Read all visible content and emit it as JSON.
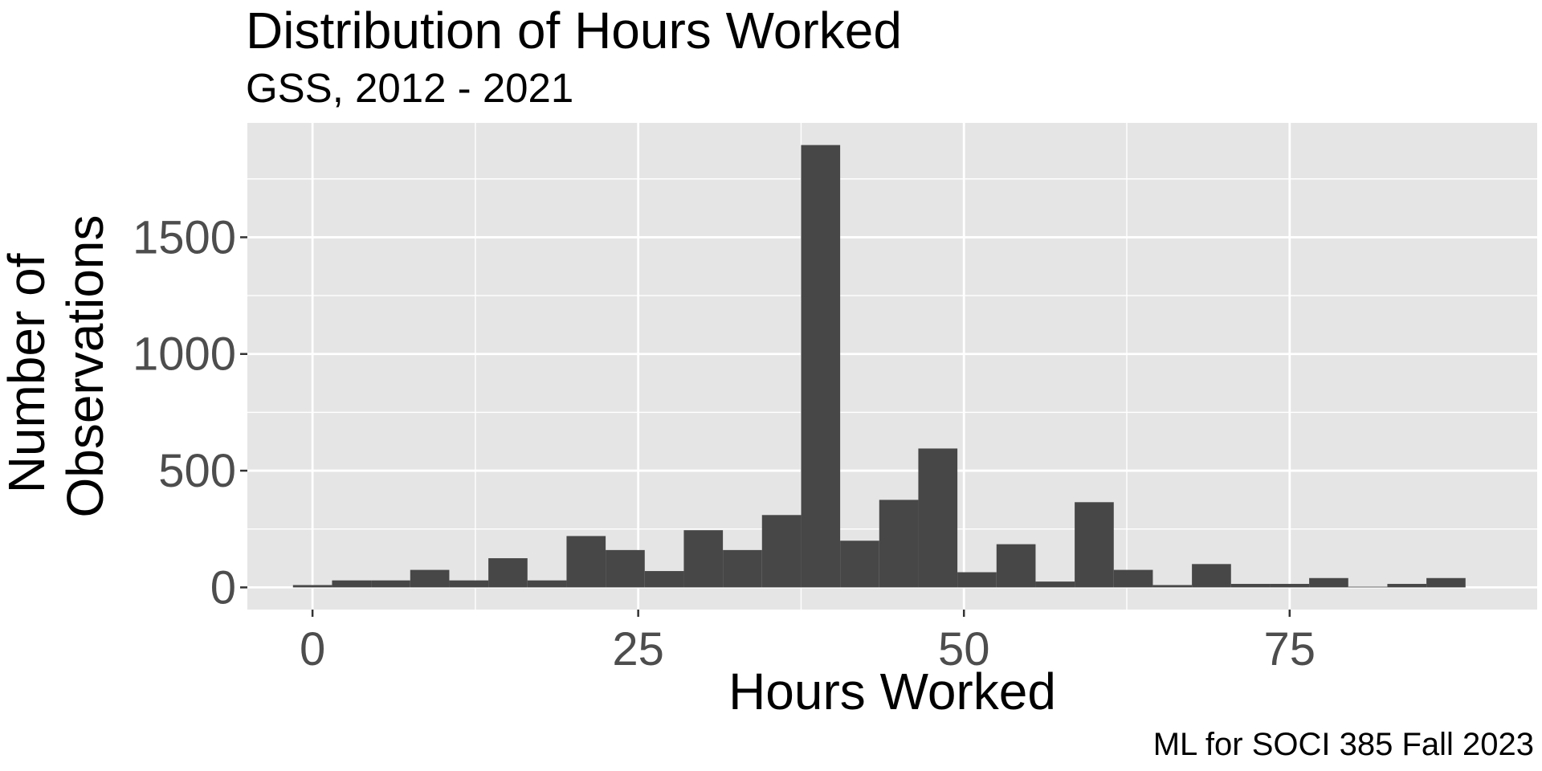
{
  "chart_data": {
    "type": "bar",
    "title": "Distribution of Hours Worked",
    "subtitle": "GSS, 2012 - 2021",
    "xlabel": "Hours Worked",
    "ylabel": "Number of Observations",
    "ylabel_lines": [
      "Number of",
      "Observations"
    ],
    "caption": "ML for SOCI 385 Fall 2023",
    "bin_width": 3,
    "bins": [
      {
        "x": 0,
        "count": 10
      },
      {
        "x": 3,
        "count": 30
      },
      {
        "x": 6,
        "count": 30
      },
      {
        "x": 9,
        "count": 75
      },
      {
        "x": 12,
        "count": 30
      },
      {
        "x": 15,
        "count": 125
      },
      {
        "x": 18,
        "count": 30
      },
      {
        "x": 21,
        "count": 220
      },
      {
        "x": 24,
        "count": 160
      },
      {
        "x": 27,
        "count": 70
      },
      {
        "x": 30,
        "count": 245
      },
      {
        "x": 33,
        "count": 160
      },
      {
        "x": 36,
        "count": 310
      },
      {
        "x": 39,
        "count": 1895
      },
      {
        "x": 42,
        "count": 200
      },
      {
        "x": 45,
        "count": 375
      },
      {
        "x": 48,
        "count": 595
      },
      {
        "x": 51,
        "count": 65
      },
      {
        "x": 54,
        "count": 185
      },
      {
        "x": 57,
        "count": 25
      },
      {
        "x": 60,
        "count": 365
      },
      {
        "x": 63,
        "count": 75
      },
      {
        "x": 66,
        "count": 10
      },
      {
        "x": 69,
        "count": 100
      },
      {
        "x": 72,
        "count": 15
      },
      {
        "x": 75,
        "count": 15
      },
      {
        "x": 78,
        "count": 40
      },
      {
        "x": 81,
        "count": 3
      },
      {
        "x": 84,
        "count": 15
      },
      {
        "x": 87,
        "count": 40
      }
    ],
    "xlim": [
      -5,
      94
    ],
    "ylim": [
      -95,
      1990
    ],
    "x_ticks": [
      0,
      25,
      50,
      75
    ],
    "y_ticks": [
      0,
      500,
      1000,
      1500
    ],
    "grid": true,
    "colors": {
      "panel_background": "#e5e5e5",
      "grid_line": "#ffffff",
      "bar_fill": "#474747",
      "tick_label": "#4d4d4d",
      "text": "#000000"
    }
  }
}
